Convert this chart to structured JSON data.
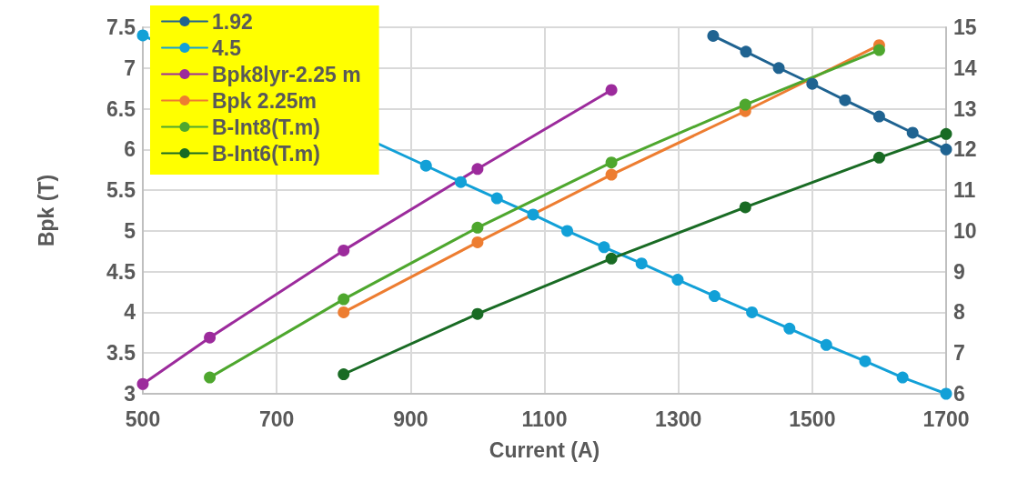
{
  "chart_data": {
    "type": "line",
    "xlabel": "Current (A)",
    "ylabel": "Bpk (T)",
    "xlim": [
      500,
      1700
    ],
    "xticks": [
      500,
      700,
      900,
      1100,
      1300,
      1500,
      1700
    ],
    "ylim": [
      3,
      7.5
    ],
    "yticks": [
      3,
      3.5,
      4,
      4.5,
      5,
      5.5,
      6,
      6.5,
      7,
      7.5
    ],
    "y2lim": [
      6,
      15
    ],
    "y2ticks": [
      6,
      7,
      8,
      9,
      10,
      11,
      12,
      13,
      14,
      15
    ],
    "grid": true,
    "legend": "top left",
    "marker": "circle",
    "line_style": "solid",
    "series": [
      {
        "name": "1.92",
        "color": "#1f6391",
        "axis": "y2",
        "x": [
          1352,
          1401,
          1450,
          1500,
          1549,
          1600,
          1650,
          1700
        ],
        "values": [
          14.79,
          14.4,
          14.0,
          13.61,
          13.21,
          12.81,
          12.41,
          12.0
        ]
      },
      {
        "name": "4.5",
        "color": "#12a0d7",
        "axis": "y2",
        "x": [
          500,
          923,
          975,
          1029,
          1083,
          1134,
          1189,
          1245,
          1299,
          1354,
          1410,
          1466,
          1521,
          1579,
          1635,
          1700
        ],
        "values": [
          14.8,
          11.6,
          11.2,
          10.8,
          10.4,
          10.0,
          9.6,
          9.2,
          8.8,
          8.4,
          8.0,
          7.6,
          7.2,
          6.8,
          6.4,
          6.0
        ]
      },
      {
        "name": "Bpk8lyr-2.25 m",
        "color": "#9c2b9c",
        "x": [
          500,
          600,
          800,
          1000,
          1200
        ],
        "values": [
          3.12,
          3.69,
          4.76,
          5.76,
          6.73
        ]
      },
      {
        "name": "Bpk 2.25m",
        "color": "#ed7d31",
        "x": [
          800,
          1000,
          1200,
          1400,
          1600
        ],
        "values": [
          4.0,
          4.86,
          5.69,
          6.47,
          7.28
        ]
      },
      {
        "name": "B-Int8(T.m)",
        "color": "#4ea72e",
        "x": [
          600,
          800,
          1000,
          1200,
          1400,
          1600
        ],
        "values": [
          3.2,
          4.16,
          5.04,
          5.84,
          6.55,
          7.22
        ]
      },
      {
        "name": "B-Int6(T.m)",
        "color": "#196b24",
        "x": [
          800,
          1000,
          1200,
          1400,
          1600,
          1700
        ],
        "values": [
          3.24,
          3.98,
          4.66,
          5.29,
          5.9,
          6.19
        ]
      }
    ]
  }
}
